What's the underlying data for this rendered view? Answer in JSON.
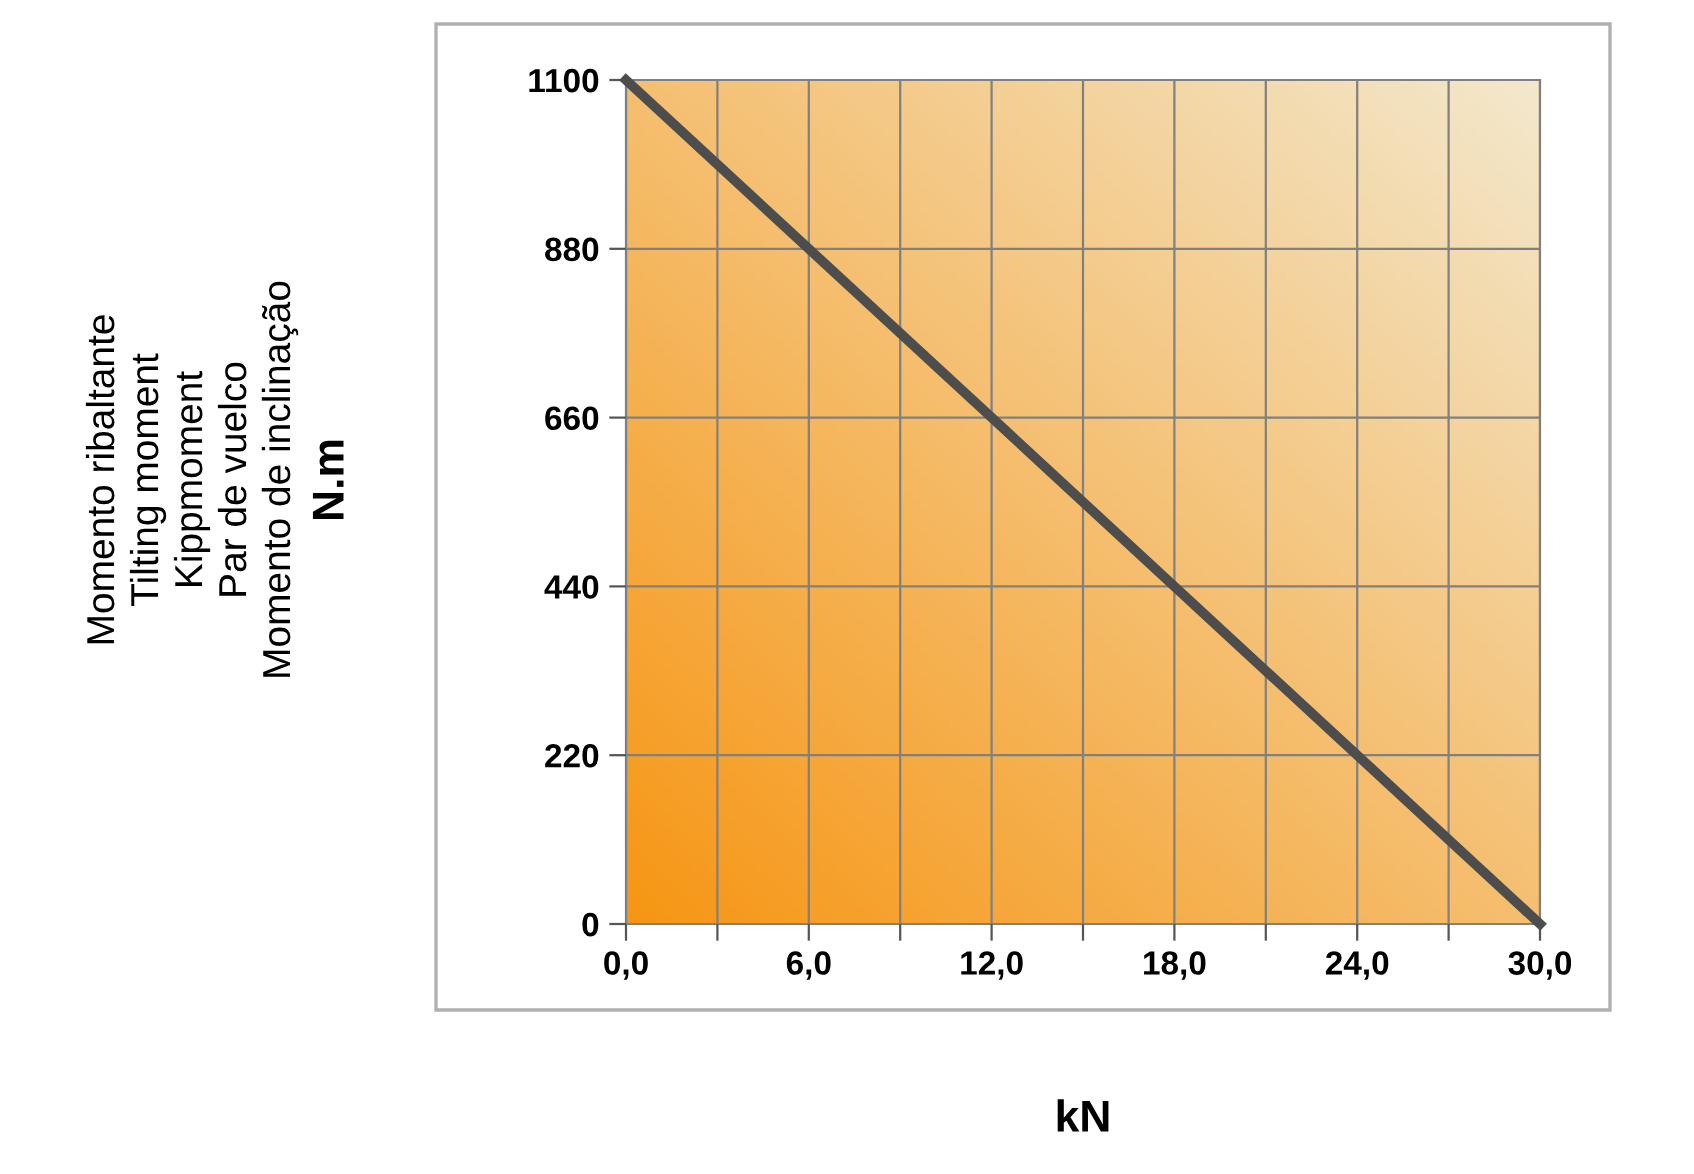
{
  "chart_data": {
    "type": "line",
    "xlabel": "kN",
    "ylabel": "Momento ribaltante\nTilting moment\nKippmoment\nPar de vuelco\nMomento de inclinação\nN.m",
    "x": [
      0,
      30
    ],
    "series": [
      {
        "color": "#4d4d4d",
        "values": [
          1100,
          0
        ]
      }
    ],
    "xlim": [
      0,
      30
    ],
    "ylim": [
      0,
      1100
    ],
    "xticks": [
      {
        "value": 0,
        "label": "0,0"
      },
      {
        "value": 3,
        "label": null
      },
      {
        "value": 6,
        "label": "6,0"
      },
      {
        "value": 9,
        "label": null
      },
      {
        "value": 12,
        "label": "12,0"
      },
      {
        "value": 15,
        "label": null
      },
      {
        "value": 18,
        "label": "18,0"
      },
      {
        "value": 21,
        "label": null
      },
      {
        "value": 24,
        "label": "24,0"
      },
      {
        "value": 27,
        "label": null
      },
      {
        "value": 30,
        "label": "30,0"
      }
    ],
    "yticks": [
      0,
      220,
      440,
      660,
      880,
      1100
    ],
    "grid": true,
    "marker": "none",
    "line_style": "solid",
    "legend": false
  }
}
